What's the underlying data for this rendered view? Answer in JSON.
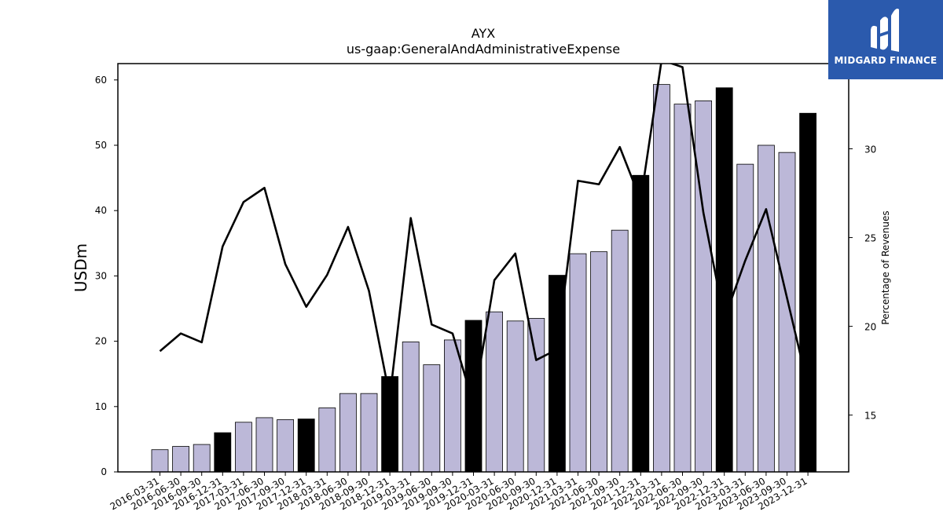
{
  "chart_data": {
    "type": "bar",
    "title": "AYX",
    "subtitle": "us-gaap:GeneralAndAdministrativeExpense",
    "ylabel": "USDm",
    "y2label": "Percentage of Revenues",
    "ylim": [
      0,
      62.5
    ],
    "y2lim": [
      11.8,
      34.8
    ],
    "yticks": [
      0,
      10,
      20,
      30,
      40,
      50,
      60
    ],
    "y2ticks": [
      15,
      20,
      25,
      30
    ],
    "categories": [
      "2016-03-31",
      "2016-06-30",
      "2016-09-30",
      "2016-12-31",
      "2017-03-31",
      "2017-06-30",
      "2017-09-30",
      "2017-12-31",
      "2018-03-31",
      "2018-06-30",
      "2018-09-30",
      "2018-12-31",
      "2019-03-31",
      "2019-06-30",
      "2019-09-30",
      "2019-12-31",
      "2020-03-31",
      "2020-06-30",
      "2020-09-30",
      "2020-12-31",
      "2021-03-31",
      "2021-06-30",
      "2021-09-30",
      "2021-12-31",
      "2022-03-31",
      "2022-06-30",
      "2022-09-30",
      "2022-12-31",
      "2023-03-31",
      "2023-06-30",
      "2023-09-30",
      "2023-12-31"
    ],
    "series": [
      {
        "type": "bar",
        "axis": "left",
        "values": [
          3.4,
          3.9,
          4.2,
          6.0,
          7.6,
          8.3,
          8.0,
          8.1,
          9.8,
          12.0,
          12.0,
          14.6,
          19.9,
          16.4,
          20.2,
          23.2,
          24.5,
          23.1,
          23.5,
          30.1,
          33.4,
          33.7,
          37.0,
          45.4,
          59.3,
          56.3,
          56.8,
          58.8,
          47.1,
          50.0,
          48.9,
          54.9
        ]
      },
      {
        "type": "line",
        "axis": "right",
        "values": [
          18.6,
          19.6,
          19.1,
          24.5,
          27.0,
          27.8,
          23.5,
          21.1,
          22.9,
          25.6,
          22.0,
          16.0,
          26.1,
          20.1,
          19.6,
          15.6,
          22.6,
          24.1,
          18.1,
          18.7,
          28.2,
          28.0,
          30.1,
          27.1,
          35.0,
          34.6,
          26.4,
          20.4,
          23.7,
          26.6,
          21.6,
          16.6
        ]
      }
    ],
    "colors": {
      "bar_default": "#bcb8d8",
      "bar_year_end": "#000000",
      "bar_edge": "#000000",
      "line": "#000000",
      "logo_bg": "#2b5aad"
    }
  },
  "logo": {
    "text": "MIDGARD FINANCE"
  }
}
